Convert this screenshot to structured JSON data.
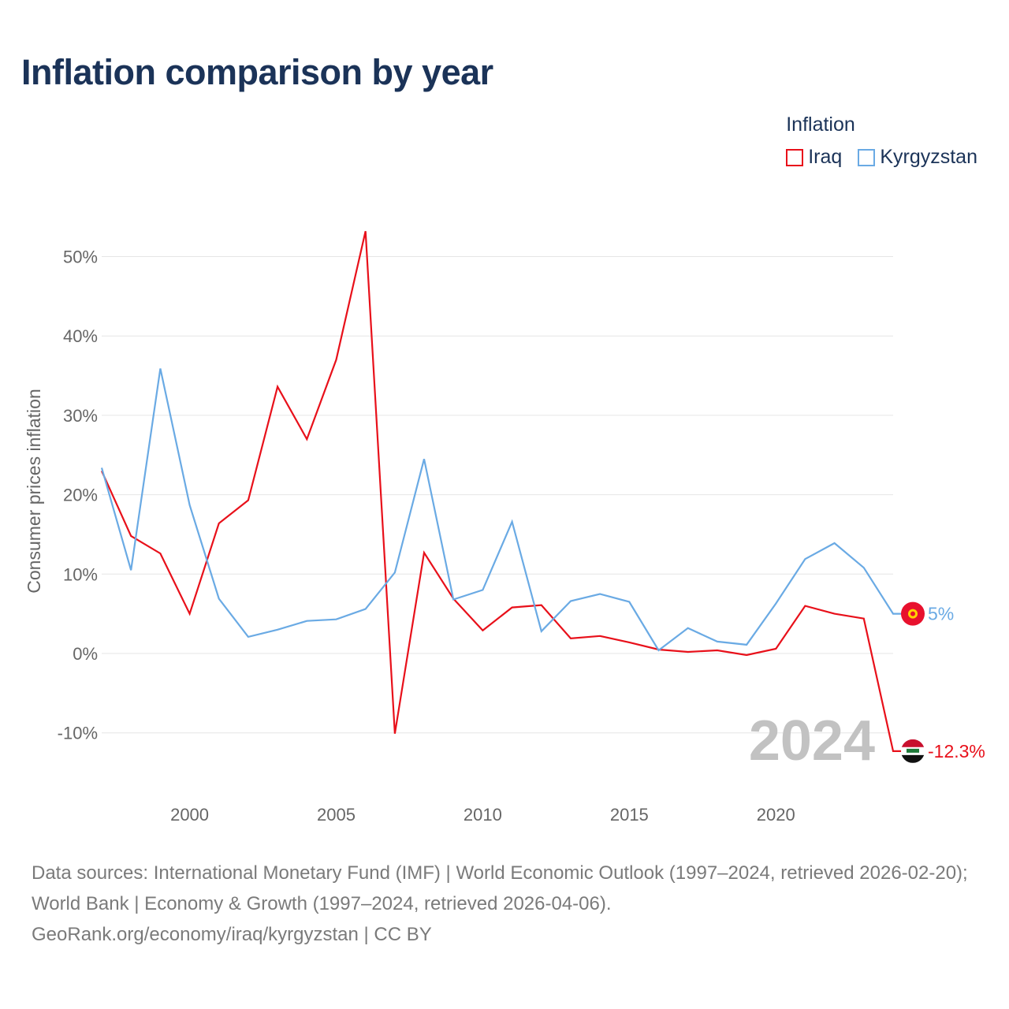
{
  "title": "Inflation comparison by year",
  "legend": {
    "title": "Inflation",
    "items": [
      {
        "label": "Iraq",
        "color": "#e8101a"
      },
      {
        "label": "Kyrgyzstan",
        "color": "#6aaae4"
      }
    ]
  },
  "chart_data": {
    "type": "line",
    "title": "Inflation comparison by year",
    "xlabel": "",
    "ylabel": "Consumer prices inflation",
    "xlim": [
      1997,
      2024
    ],
    "ylim": [
      -15,
      55
    ],
    "x_ticks": [
      2000,
      2005,
      2010,
      2015,
      2020
    ],
    "y_ticks": [
      -10,
      0,
      10,
      20,
      30,
      40,
      50
    ],
    "y_tick_labels": [
      "-10%",
      "0%",
      "10%",
      "20%",
      "30%",
      "40%",
      "50%"
    ],
    "grid": true,
    "x": [
      1997,
      1998,
      1999,
      2000,
      2001,
      2002,
      2003,
      2004,
      2005,
      2006,
      2007,
      2008,
      2009,
      2010,
      2011,
      2012,
      2013,
      2014,
      2015,
      2016,
      2017,
      2018,
      2019,
      2020,
      2021,
      2022,
      2023,
      2024
    ],
    "series": [
      {
        "name": "Iraq",
        "color": "#e8101a",
        "values": [
          23.0,
          14.8,
          12.6,
          5.0,
          16.4,
          19.3,
          33.6,
          27.0,
          37.0,
          53.2,
          -10.1,
          12.7,
          6.9,
          2.9,
          5.8,
          6.1,
          1.9,
          2.2,
          1.4,
          0.5,
          0.2,
          0.4,
          -0.2,
          0.6,
          6.0,
          5.0,
          4.4,
          -12.3
        ],
        "end_label": "-12.3%"
      },
      {
        "name": "Kyrgyzstan",
        "color": "#6aaae4",
        "values": [
          23.4,
          10.5,
          35.9,
          18.7,
          6.9,
          2.1,
          3.0,
          4.1,
          4.3,
          5.6,
          10.2,
          24.5,
          6.8,
          8.0,
          16.6,
          2.8,
          6.6,
          7.5,
          6.5,
          0.4,
          3.2,
          1.5,
          1.1,
          6.3,
          11.9,
          13.9,
          10.8,
          5.0
        ],
        "end_label": "5%"
      }
    ],
    "year_watermark": "2024"
  },
  "source": {
    "line": "Data sources: International Monetary Fund (IMF) | World Economic Outlook (1997–2024, retrieved 2026-02-20); World Bank | Economy & Growth (1997–2024, retrieved 2026-04-06).",
    "credit": "GeoRank.org/economy/iraq/kyrgyzstan | CC BY"
  }
}
